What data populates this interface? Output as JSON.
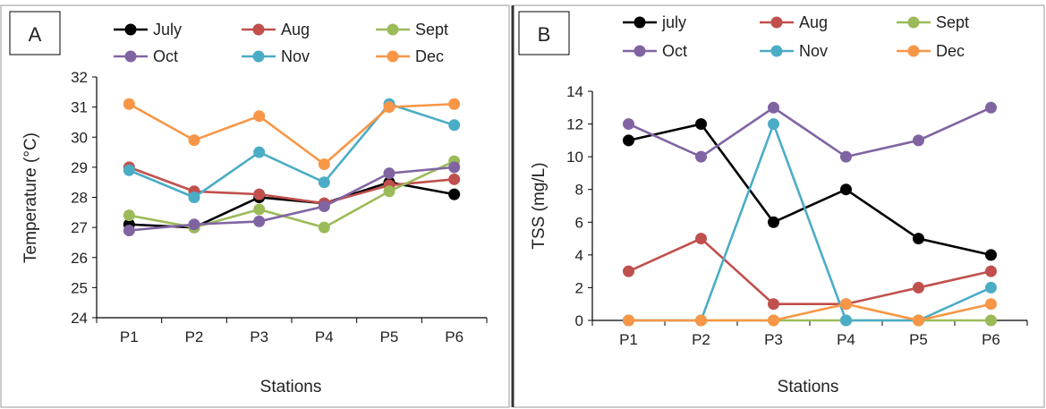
{
  "chart_data": [
    {
      "type": "line",
      "panel_label": "A",
      "categories": [
        "P1",
        "P2",
        "P3",
        "P4",
        "P5",
        "P6"
      ],
      "xlabel": "Stations",
      "ylabel": "Temperature (°C)",
      "ylim": [
        24,
        32
      ],
      "yticks": [
        24,
        25,
        26,
        27,
        28,
        29,
        30,
        31,
        32
      ],
      "grid": false,
      "legend": "top",
      "series": [
        {
          "name": "July",
          "color": "#000000",
          "values": [
            27.1,
            27.0,
            28.0,
            27.8,
            28.5,
            28.1
          ]
        },
        {
          "name": "Aug",
          "color": "#C0504D",
          "values": [
            29.0,
            28.2,
            28.1,
            27.8,
            28.4,
            28.6
          ]
        },
        {
          "name": "Sept",
          "color": "#9BBB59",
          "values": [
            27.4,
            27.0,
            27.6,
            27.0,
            28.2,
            29.2
          ]
        },
        {
          "name": "Oct",
          "color": "#8064A2",
          "values": [
            26.9,
            27.1,
            27.2,
            27.7,
            28.8,
            29.0
          ]
        },
        {
          "name": "Nov",
          "color": "#4BACC6",
          "values": [
            28.9,
            28.0,
            29.5,
            28.5,
            31.1,
            30.4
          ]
        },
        {
          "name": "Dec",
          "color": "#F79646",
          "values": [
            31.1,
            29.9,
            30.7,
            29.1,
            31.0,
            31.1
          ]
        }
      ]
    },
    {
      "type": "line",
      "panel_label": "B",
      "categories": [
        "P1",
        "P2",
        "P3",
        "P4",
        "P5",
        "P6"
      ],
      "xlabel": "Stations",
      "ylabel": "TSS (mg/L)",
      "ylim": [
        0,
        14
      ],
      "yticks": [
        0,
        2,
        4,
        6,
        8,
        10,
        12,
        14
      ],
      "grid": false,
      "legend": "top",
      "series": [
        {
          "name": "july",
          "color": "#000000",
          "values": [
            11,
            12,
            6,
            8,
            5,
            4
          ]
        },
        {
          "name": "Aug",
          "color": "#C0504D",
          "values": [
            3,
            5,
            1,
            1,
            2,
            3
          ]
        },
        {
          "name": "Sept",
          "color": "#9BBB59",
          "values": [
            0,
            0,
            0,
            0,
            0,
            0
          ]
        },
        {
          "name": "Oct",
          "color": "#8064A2",
          "values": [
            12,
            10,
            13,
            10,
            11,
            13
          ]
        },
        {
          "name": "Nov",
          "color": "#4BACC6",
          "values": [
            0,
            0,
            12,
            0,
            0,
            2
          ]
        },
        {
          "name": "Dec",
          "color": "#F79646",
          "values": [
            0,
            0,
            0,
            1,
            0,
            1
          ]
        }
      ]
    }
  ]
}
